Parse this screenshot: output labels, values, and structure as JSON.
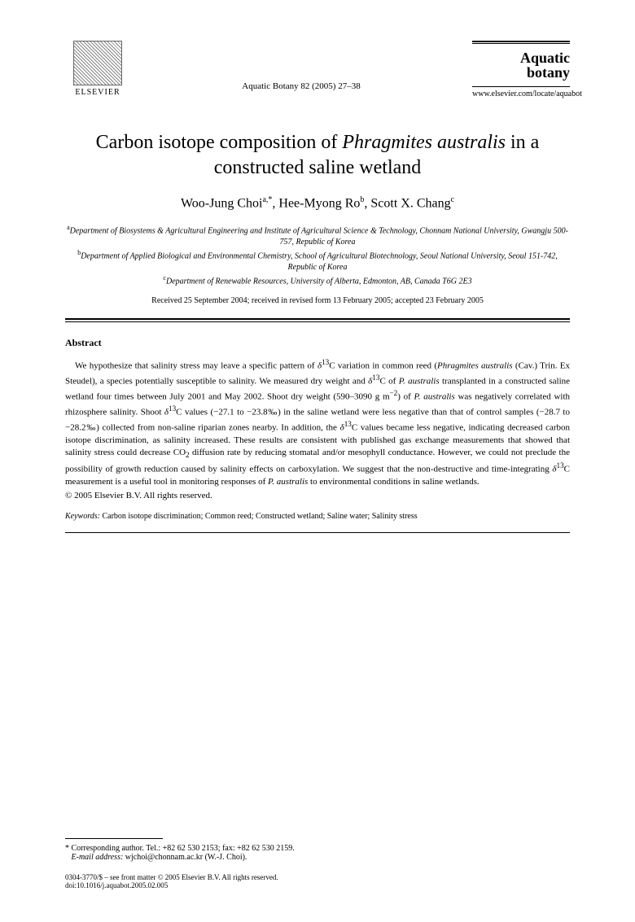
{
  "header": {
    "publisher_name": "ELSEVIER",
    "journal_ref": "Aquatic Botany 82 (2005) 27–38",
    "journal_name_line1": "Aquatic",
    "journal_name_line2": "botany",
    "journal_url": "www.elsevier.com/locate/aquabot"
  },
  "title": {
    "pre": "Carbon isotope composition of ",
    "species": "Phragmites australis",
    "post": " in a constructed saline wetland"
  },
  "authors": {
    "a1_name": "Woo-Jung Choi",
    "a1_sup": "a,*",
    "a2_name": "Hee-Myong Ro",
    "a2_sup": "b",
    "a3_name": "Scott X. Chang",
    "a3_sup": "c"
  },
  "affiliations": {
    "a_sup": "a",
    "a_text": "Department of Biosystems & Agricultural Engineering and Institute of Agricultural Science & Technology, Chonnam National University, Gwangju 500-757, Republic of Korea",
    "b_sup": "b",
    "b_text": "Department of Applied Biological and Environmental Chemistry, School of Agricultural Biotechnology, Seoul National University, Seoul 151-742, Republic of Korea",
    "c_sup": "c",
    "c_text": "Department of Renewable Resources, University of Alberta, Edmonton, AB, Canada T6G 2E3"
  },
  "dates": "Received 25 September 2004; received in revised form 13 February 2005; accepted 23 February 2005",
  "abstract": {
    "heading": "Abstract",
    "body_html": "We hypothesize that salinity stress may leave a specific pattern of <i>δ</i><sup>13</sup>C variation in common reed (<i>Phragmites australis</i> (Cav.) Trin. Ex Steudel), a species potentially susceptible to salinity. We measured dry weight and <i>δ</i><sup>13</sup>C of <i>P. australis</i> transplanted in a constructed saline wetland four times between July 2001 and May 2002. Shoot dry weight (590–3090 g m<sup>−2</sup>) of <i>P. australis</i> was negatively correlated with rhizosphere salinity. Shoot <i>δ</i><sup>13</sup>C values (−27.1 to −23.8‰) in the saline wetland were less negative than that of control samples (−28.7 to −28.2‰) collected from non-saline riparian zones nearby. In addition, the <i>δ</i><sup>13</sup>C values became less negative, indicating decreased carbon isotope discrimination, as salinity increased. These results are consistent with published gas exchange measurements that showed that salinity stress could decrease CO<sub>2</sub> diffusion rate by reducing stomatal and/or mesophyll conductance. However, we could not preclude the possibility of growth reduction caused by salinity effects on carboxylation. We suggest that the non-destructive and time-integrating <i>δ</i><sup>13</sup>C measurement is a useful tool in monitoring responses of <i>P. australis</i> to environmental conditions in saline wetlands.",
    "copyright": "© 2005 Elsevier B.V. All rights reserved."
  },
  "keywords": {
    "label": "Keywords:",
    "text": "Carbon isotope discrimination; Common reed; Constructed wetland; Saline water; Salinity stress"
  },
  "footer": {
    "corr_label": "* Corresponding author. Tel.: +82 62 530 2153; fax: +82 62 530 2159.",
    "email_label": "E-mail address:",
    "email_value": "wjchoi@chonnam.ac.kr (W.-J. Choi).",
    "issn_line": "0304-3770/$ – see front matter © 2005 Elsevier B.V. All rights reserved.",
    "doi_line": "doi:10.1016/j.aquabot.2005.02.005"
  },
  "colors": {
    "text": "#000000",
    "background": "#ffffff"
  }
}
